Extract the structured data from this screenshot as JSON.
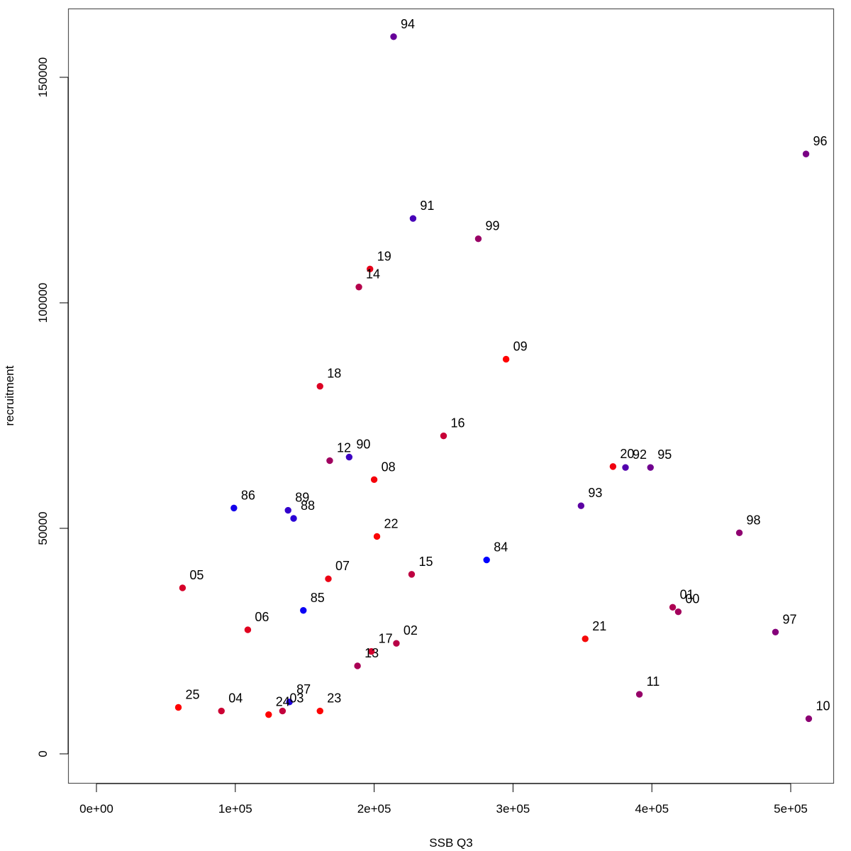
{
  "chart_data": {
    "type": "scatter",
    "xlabel": "SSB Q3",
    "ylabel": "recruitment",
    "xlim": [
      -20000,
      520000
    ],
    "ylim": [
      -6500,
      165000
    ],
    "xticks": [
      0,
      100000,
      200000,
      300000,
      400000,
      500000
    ],
    "xtick_labels": [
      "0e+00",
      "1e+05",
      "2e+05",
      "3e+05",
      "4e+05",
      "5e+05"
    ],
    "yticks": [
      0,
      50000,
      100000,
      150000
    ],
    "ytick_labels": [
      "0",
      "50000",
      "100000",
      "150000"
    ],
    "color_scale": {
      "early": "#0000ff",
      "late": "#ff0000"
    },
    "points": [
      {
        "label": "84",
        "x": 281000,
        "y": 43000,
        "color": "#0000ff"
      },
      {
        "label": "85",
        "x": 149000,
        "y": 31800,
        "color": "#0a00f5"
      },
      {
        "label": "86",
        "x": 99000,
        "y": 54500,
        "color": "#1400eb"
      },
      {
        "label": "87",
        "x": 139000,
        "y": 11500,
        "color": "#1f00e0"
      },
      {
        "label": "88",
        "x": 142000,
        "y": 52200,
        "color": "#2900d6"
      },
      {
        "label": "89",
        "x": 138000,
        "y": 54000,
        "color": "#3300cc"
      },
      {
        "label": "90",
        "x": 182000,
        "y": 65800,
        "color": "#3d00c2"
      },
      {
        "label": "91",
        "x": 228000,
        "y": 118700,
        "color": "#4700b8"
      },
      {
        "label": "92",
        "x": 381000,
        "y": 63500,
        "color": "#5200ad"
      },
      {
        "label": "93",
        "x": 349000,
        "y": 55000,
        "color": "#5c00a3"
      },
      {
        "label": "94",
        "x": 214000,
        "y": 159000,
        "color": "#660099"
      },
      {
        "label": "95",
        "x": 399000,
        "y": 63500,
        "color": "#70008f"
      },
      {
        "label": "96",
        "x": 511000,
        "y": 133000,
        "color": "#7a0085"
      },
      {
        "label": "97",
        "x": 489000,
        "y": 27000,
        "color": "#85007a"
      },
      {
        "label": "98",
        "x": 463000,
        "y": 49000,
        "color": "#8f0070"
      },
      {
        "label": "99",
        "x": 275000,
        "y": 114200,
        "color": "#990066"
      },
      {
        "label": "00",
        "x": 419000,
        "y": 31500,
        "color": "#a3005c"
      },
      {
        "label": "01",
        "x": 415000,
        "y": 32500,
        "color": "#ad0052"
      },
      {
        "label": "02",
        "x": 216000,
        "y": 24500,
        "color": "#b80047"
      },
      {
        "label": "03",
        "x": 134000,
        "y": 9500,
        "color": "#c2003d"
      },
      {
        "label": "04",
        "x": 90000,
        "y": 9500,
        "color": "#cc0033"
      },
      {
        "label": "05",
        "x": 62000,
        "y": 36800,
        "color": "#d60029"
      },
      {
        "label": "06",
        "x": 109000,
        "y": 27500,
        "color": "#e0001f"
      },
      {
        "label": "07",
        "x": 167000,
        "y": 38800,
        "color": "#eb0014"
      },
      {
        "label": "08",
        "x": 200000,
        "y": 60800,
        "color": "#f5000a"
      },
      {
        "label": "09",
        "x": 295000,
        "y": 87500,
        "color": "#ff0000"
      },
      {
        "label": "10",
        "x": 513000,
        "y": 7800,
        "color": "#8c0073"
      },
      {
        "label": "11",
        "x": 391000,
        "y": 13200,
        "color": "#960069"
      },
      {
        "label": "12",
        "x": 168000,
        "y": 65000,
        "color": "#a0005f"
      },
      {
        "label": "13",
        "x": 188000,
        "y": 19500,
        "color": "#aa0055"
      },
      {
        "label": "14",
        "x": 189000,
        "y": 103500,
        "color": "#b4004b"
      },
      {
        "label": "15",
        "x": 227000,
        "y": 39800,
        "color": "#be0041"
      },
      {
        "label": "16",
        "x": 250000,
        "y": 70500,
        "color": "#c80037"
      },
      {
        "label": "17",
        "x": 198000,
        "y": 22700,
        "color": "#d2002d"
      },
      {
        "label": "18",
        "x": 161000,
        "y": 81500,
        "color": "#dc0023"
      },
      {
        "label": "19",
        "x": 197000,
        "y": 107500,
        "color": "#e60019"
      },
      {
        "label": "20",
        "x": 372000,
        "y": 63700,
        "color": "#f0000f"
      },
      {
        "label": "21",
        "x": 352000,
        "y": 25500,
        "color": "#f50a0a"
      },
      {
        "label": "22",
        "x": 202000,
        "y": 48200,
        "color": "#fa0505"
      },
      {
        "label": "23",
        "x": 161000,
        "y": 9500,
        "color": "#fc0303"
      },
      {
        "label": "24",
        "x": 124000,
        "y": 8700,
        "color": "#fe0101"
      },
      {
        "label": "25",
        "x": 59000,
        "y": 10300,
        "color": "#ff0000"
      }
    ]
  }
}
